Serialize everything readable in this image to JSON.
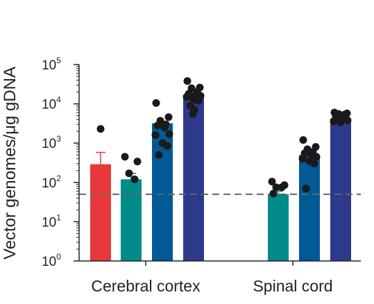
{
  "chart_data": {
    "type": "bar",
    "ylabel": "Vector genomes/μg gDNA",
    "yscale": "log",
    "ylim": [
      1,
      100000
    ],
    "yticks": [
      {
        "base": "10",
        "exp": "0",
        "value": 1
      },
      {
        "base": "10",
        "exp": "1",
        "value": 10
      },
      {
        "base": "10",
        "exp": "2",
        "value": 100
      },
      {
        "base": "10",
        "exp": "3",
        "value": 1000
      },
      {
        "base": "10",
        "exp": "4",
        "value": 10000
      },
      {
        "base": "10",
        "exp": "5",
        "value": 100000
      }
    ],
    "threshold": 50,
    "categories": [
      "Cerebral cortex",
      "Spinal cord"
    ],
    "groups": [
      {
        "category": "Cerebral cortex",
        "bars": [
          {
            "color": "#e8383b",
            "value": 290,
            "error_upper": 580,
            "points": [
              2300
            ]
          },
          {
            "color": "#008b8b",
            "value": 120,
            "error_upper": 170,
            "points": [
              450,
              340,
              170,
              120
            ]
          },
          {
            "color": "#005a96",
            "value": 3200,
            "error_upper": 3600,
            "points": [
              10500,
              4600,
              3700,
              3000,
              2800,
              2500,
              1700,
              1600,
              1000,
              850,
              500,
              2900
            ]
          },
          {
            "color": "#2d3a8c",
            "value": 17000,
            "error_upper": 19000,
            "points": [
              38000,
              26000,
              25000,
              20000,
              18000,
              17000,
              16000,
              15000,
              13000,
              12000,
              9000,
              7000,
              5500
            ]
          }
        ]
      },
      {
        "category": "Spinal cord",
        "bars": [
          {
            "color": "#008b8b",
            "value": 50,
            "error_upper": 60,
            "points": [
              105,
              85,
              75,
              75,
              52
            ]
          },
          {
            "color": "#005a96",
            "value": 500,
            "error_upper": 650,
            "points": [
              1200,
              800,
              700,
              600,
              550,
              500,
              450,
              400,
              350,
              300,
              70
            ]
          },
          {
            "color": "#2d3a8c",
            "value": 4200,
            "error_upper": 4800,
            "points": [
              6000,
              5700,
              5500,
              5300,
              4800,
              4200,
              3800,
              3600,
              3400
            ]
          }
        ]
      }
    ]
  }
}
